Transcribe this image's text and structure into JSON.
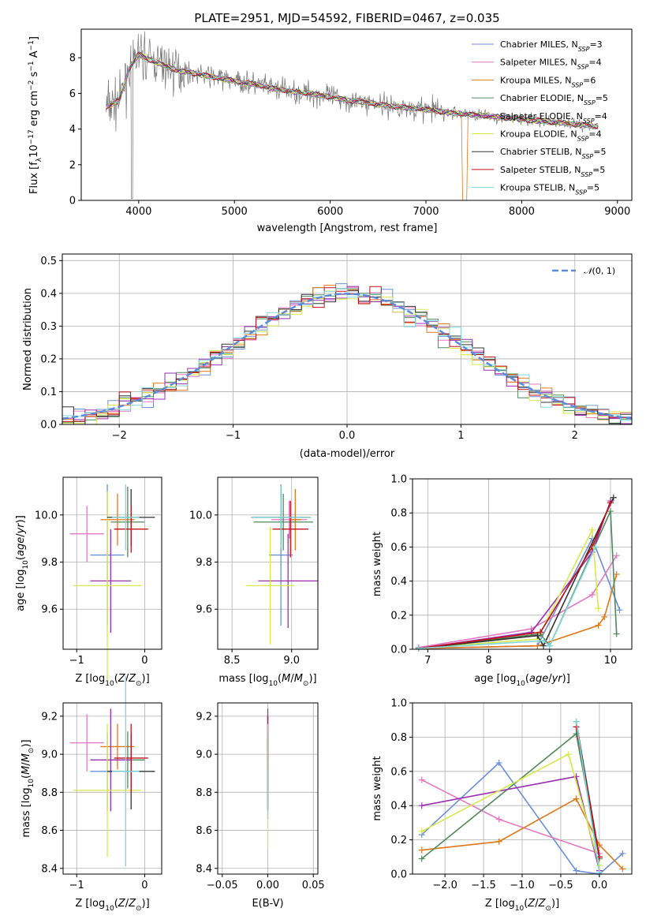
{
  "figure": {
    "title": "PLATE=2951, MJD=54592, FIBERID=0467, z=0.035"
  },
  "series_colors": [
    "#6b8fd9",
    "#e377c2",
    "#e0771a",
    "#4f8a5a",
    "#9a2fb0",
    "#d6e84a",
    "#333333",
    "#c2111a",
    "#7fd6dc"
  ],
  "chart_data": [
    {
      "id": "spectrum",
      "type": "line",
      "xlabel": "wavelength [Angstrom, rest frame]",
      "ylabel": "Flux [f$_\\lambda$10$^{-17}$ erg cm$^{-2}$ s$^{-1}$ A$^{-1}$]",
      "xlim": [
        3400,
        9150
      ],
      "ylim": [
        0,
        9.6
      ],
      "xticks": [
        4000,
        5000,
        6000,
        7000,
        8000,
        9000
      ],
      "yticks": [
        0,
        2,
        4,
        6,
        8
      ],
      "legend_position": "top-right",
      "legend": [
        {
          "label": "Chabrier MILES, N",
          "sub": "SSP",
          "tail": "=3"
        },
        {
          "label": "Salpeter MILES, N",
          "sub": "SSP",
          "tail": "=4"
        },
        {
          "label": "Kroupa MILES, N",
          "sub": "SSP",
          "tail": "=6"
        },
        {
          "label": "Chabrier ELODIE, N",
          "sub": "SSP",
          "tail": "=5"
        },
        {
          "label": "Salpeter ELODIE, N",
          "sub": "SSP",
          "tail": "=4"
        },
        {
          "label": "Kroupa ELODIE, N",
          "sub": "SSP",
          "tail": "=4"
        },
        {
          "label": "Chabrier STELIB, N",
          "sub": "SSP",
          "tail": "=5"
        },
        {
          "label": "Salpeter STELIB, N",
          "sub": "SSP",
          "tail": "=5"
        },
        {
          "label": "Kroupa STELIB, N",
          "sub": "SSP",
          "tail": "=5"
        }
      ],
      "data_x": [
        3650,
        3800,
        3900,
        4000,
        4100,
        4200,
        4300,
        4400,
        4500,
        4600,
        4700,
        4800,
        4900,
        5000,
        5200,
        5400,
        5600,
        5800,
        6000,
        6200,
        6400,
        6600,
        6800,
        7000,
        7200,
        7400,
        7600,
        7800,
        8000,
        8200,
        8400,
        8600,
        8800
      ],
      "data_y": [
        5.2,
        5.6,
        7.4,
        8.2,
        7.9,
        7.7,
        7.5,
        7.3,
        7.2,
        7.1,
        7.0,
        6.9,
        6.8,
        6.7,
        6.5,
        6.3,
        6.1,
        6.0,
        5.8,
        5.6,
        5.5,
        5.3,
        5.2,
        5.1,
        4.95,
        4.85,
        4.75,
        4.65,
        4.55,
        4.45,
        4.35,
        4.25,
        4.15
      ]
    },
    {
      "id": "residual-hist",
      "type": "histogram",
      "xlabel": "(data-model)/error",
      "ylabel": "Normed distribution",
      "xlim": [
        -2.5,
        2.5
      ],
      "ylim": [
        0,
        0.52
      ],
      "xticks": [
        -2,
        -1,
        0,
        1,
        2
      ],
      "yticks": [
        0.0,
        0.1,
        0.2,
        0.3,
        0.4,
        0.5
      ],
      "legend_position": "top-right",
      "curve_label": "N(0,1)",
      "bin_width": 0.1
    },
    {
      "id": "age-vs-Z",
      "type": "errorbar",
      "xlabel": "Z [log10(Z/Zsun)]",
      "ylabel": "age [log10(age/yr)]",
      "xlim": [
        -1.2,
        0.25
      ],
      "ylim": [
        9.43,
        10.16
      ],
      "xticks": [
        -1,
        0
      ],
      "yticks": [
        9.6,
        9.8,
        10.0
      ],
      "points": [
        {
          "x": -0.55,
          "xerr": 0.25,
          "y": 9.83,
          "yerr": 0.3
        },
        {
          "x": -0.85,
          "xerr": 0.25,
          "y": 9.92,
          "yerr": 0.12
        },
        {
          "x": -0.4,
          "xerr": 0.25,
          "y": 9.98,
          "yerr": 0.11
        },
        {
          "x": -0.25,
          "xerr": 0.25,
          "y": 9.97,
          "yerr": 0.15
        },
        {
          "x": -0.5,
          "xerr": 0.3,
          "y": 9.72,
          "yerr": 0.22
        },
        {
          "x": -0.55,
          "xerr": 0.5,
          "y": 9.7,
          "yerr": 0.4
        },
        {
          "x": -0.2,
          "xerr": 0.35,
          "y": 9.99,
          "yerr": 0.12
        },
        {
          "x": -0.2,
          "xerr": 0.25,
          "y": 9.94,
          "yerr": 0.1
        },
        {
          "x": -0.28,
          "xerr": 0.2,
          "y": 9.99,
          "yerr": 0.14
        }
      ]
    },
    {
      "id": "age-vs-mass",
      "type": "errorbar",
      "xlabel": "mass [log10(M/Msun)]",
      "ylabel": "",
      "xlim": [
        8.38,
        9.22
      ],
      "ylim": [
        9.43,
        10.16
      ],
      "xticks": [
        8.5,
        9.0
      ],
      "yticks": [
        9.6,
        9.8,
        10.0
      ],
      "points": [
        {
          "x": 8.91,
          "xerr": 0.1,
          "y": 9.83,
          "yerr": 0.3
        },
        {
          "x": 8.98,
          "xerr": 0.15,
          "y": 9.98,
          "yerr": 0.08
        },
        {
          "x": 9.03,
          "xerr": 0.05,
          "y": 9.98,
          "yerr": 0.13
        },
        {
          "x": 8.93,
          "xerr": 0.25,
          "y": 9.97,
          "yerr": 0.12
        },
        {
          "x": 8.97,
          "xerr": 0.25,
          "y": 9.72,
          "yerr": 0.2
        },
        {
          "x": 8.82,
          "xerr": 0.2,
          "y": 9.7,
          "yerr": 0.25
        },
        {
          "x": 8.91,
          "xerr": 0.25,
          "y": 9.99,
          "yerr": 0.12
        },
        {
          "x": 8.99,
          "xerr": 0.15,
          "y": 9.94,
          "yerr": 0.12
        },
        {
          "x": 8.91,
          "xerr": 0.25,
          "y": 9.99,
          "yerr": 0.13
        }
      ]
    },
    {
      "id": "massweight-vs-age",
      "type": "line",
      "xlabel": "age [log10(age/yr)]",
      "ylabel": "mass weight",
      "xlim": [
        6.75,
        10.35
      ],
      "ylim": [
        0,
        1.0
      ],
      "xticks": [
        7,
        8,
        9,
        10
      ],
      "yticks": [
        0.0,
        0.2,
        0.4,
        0.6,
        0.8,
        1.0
      ],
      "series": [
        {
          "x": [
            6.85,
            8.8,
            9.7,
            10.15
          ],
          "y": [
            0.005,
            0.02,
            0.65,
            0.23
          ]
        },
        {
          "x": [
            6.85,
            8.7,
            9.7,
            10.1
          ],
          "y": [
            0.01,
            0.12,
            0.32,
            0.55
          ]
        },
        {
          "x": [
            6.85,
            8.8,
            9.8,
            9.9,
            10.1
          ],
          "y": [
            0.005,
            0.02,
            0.14,
            0.19,
            0.44
          ]
        },
        {
          "x": [
            6.85,
            8.85,
            9.0,
            10.0,
            10.1
          ],
          "y": [
            0.005,
            0.09,
            0.02,
            0.81,
            0.09
          ]
        },
        {
          "x": [
            6.85,
            8.7,
            9.7,
            10.0
          ],
          "y": [
            0.005,
            0.1,
            0.57,
            0.87
          ]
        },
        {
          "x": [
            6.85,
            8.8,
            9.7,
            9.8
          ],
          "y": [
            0.005,
            0.06,
            0.7,
            0.24
          ]
        },
        {
          "x": [
            6.85,
            8.8,
            8.9,
            10.05
          ],
          "y": [
            0.005,
            0.08,
            0.02,
            0.89
          ]
        },
        {
          "x": [
            6.85,
            8.85,
            9.7,
            10.0
          ],
          "y": [
            0.005,
            0.1,
            0.6,
            0.86
          ]
        },
        {
          "x": [
            6.85,
            8.9,
            9.0,
            9.75
          ],
          "y": [
            0.005,
            0.05,
            0.02,
            0.6
          ]
        }
      ]
    },
    {
      "id": "mass-vs-Z",
      "type": "errorbar",
      "xlabel": "Z [log10(Z/Zsun)]",
      "ylabel": "mass [log10(M/Msun)]",
      "xlim": [
        -1.2,
        0.25
      ],
      "ylim": [
        8.37,
        9.27
      ],
      "xticks": [
        -1,
        0
      ],
      "yticks": [
        8.4,
        8.6,
        8.8,
        9.0,
        9.2
      ],
      "points": [
        {
          "x": -0.55,
          "xerr": 0.25,
          "y": 8.91,
          "yerr": 0.2
        },
        {
          "x": -0.85,
          "xerr": 0.25,
          "y": 9.06,
          "yerr": 0.15
        },
        {
          "x": -0.4,
          "xerr": 0.25,
          "y": 9.04,
          "yerr": 0.12
        },
        {
          "x": -0.25,
          "xerr": 0.25,
          "y": 8.97,
          "yerr": 0.15
        },
        {
          "x": -0.5,
          "xerr": 0.3,
          "y": 8.97,
          "yerr": 0.27
        },
        {
          "x": -0.55,
          "xerr": 0.5,
          "y": 8.81,
          "yerr": 0.35
        },
        {
          "x": -0.2,
          "xerr": 0.35,
          "y": 8.91,
          "yerr": 0.2
        },
        {
          "x": -0.2,
          "xerr": 0.25,
          "y": 8.98,
          "yerr": 0.18
        },
        {
          "x": -0.28,
          "xerr": 0.2,
          "y": 8.91,
          "yerr": 0.5
        }
      ]
    },
    {
      "id": "mass-vs-EBV",
      "type": "errorbar",
      "xlabel": "E(B-V)",
      "ylabel": "",
      "xlim": [
        -0.055,
        0.055
      ],
      "ylim": [
        8.37,
        9.27
      ],
      "xticks": [
        -0.05,
        0.0,
        0.05
      ],
      "yticks": [
        8.4,
        8.6,
        8.8,
        9.0,
        9.2
      ],
      "points": [
        {
          "x": 0,
          "xerr": 0,
          "y": 8.91,
          "yerr": 0.15
        },
        {
          "x": 0,
          "xerr": 0,
          "y": 9.06,
          "yerr": 0.15
        },
        {
          "x": 0,
          "xerr": 0,
          "y": 9.04,
          "yerr": 0.12
        },
        {
          "x": 0,
          "xerr": 0,
          "y": 8.97,
          "yerr": 0.15
        },
        {
          "x": 0,
          "xerr": 0,
          "y": 8.97,
          "yerr": 0.27
        },
        {
          "x": 0,
          "xerr": 0,
          "y": 8.81,
          "yerr": 0.3
        },
        {
          "x": 0,
          "xerr": 0,
          "y": 8.91,
          "yerr": 0.2
        },
        {
          "x": 0,
          "xerr": 0,
          "y": 9.08,
          "yerr": 0.12
        },
        {
          "x": 0,
          "xerr": 0,
          "y": 8.91,
          "yerr": 0.25
        }
      ]
    },
    {
      "id": "massweight-vs-Z",
      "type": "line",
      "xlabel": "Z [log10(Z/Zsun)]",
      "ylabel": "mass weight",
      "xlim": [
        -2.42,
        0.42
      ],
      "ylim": [
        0,
        1.0
      ],
      "xticks": [
        -2.0,
        -1.5,
        -1.0,
        -0.5,
        0.0
      ],
      "yticks": [
        0.0,
        0.2,
        0.4,
        0.6,
        0.8,
        1.0
      ],
      "series": [
        {
          "x": [
            -2.3,
            -1.3,
            -0.3,
            0.0,
            0.3
          ],
          "y": [
            0.23,
            0.65,
            0.02,
            0.0,
            0.12
          ]
        },
        {
          "x": [
            -2.3,
            -1.3,
            0.0
          ],
          "y": [
            0.55,
            0.32,
            0.12
          ]
        },
        {
          "x": [
            -2.3,
            -1.3,
            -0.3,
            0.0,
            0.3
          ],
          "y": [
            0.14,
            0.19,
            0.44,
            0.17,
            0.03
          ]
        },
        {
          "x": [
            -2.3,
            -0.3,
            0.0
          ],
          "y": [
            0.09,
            0.82,
            0.09
          ]
        },
        {
          "x": [
            -2.3,
            -0.3,
            0.0
          ],
          "y": [
            0.4,
            0.57,
            0.02
          ]
        },
        {
          "x": [
            -2.3,
            -0.4,
            0.0
          ],
          "y": [
            0.25,
            0.7,
            0.05
          ]
        },
        {
          "x": [
            -0.3,
            0.0
          ],
          "y": [
            0.89,
            0.1
          ]
        },
        {
          "x": [
            -0.3,
            0.0
          ],
          "y": [
            0.86,
            0.1
          ]
        },
        {
          "x": [
            -0.3,
            0.0
          ],
          "y": [
            0.89,
            0.01
          ]
        }
      ]
    }
  ]
}
